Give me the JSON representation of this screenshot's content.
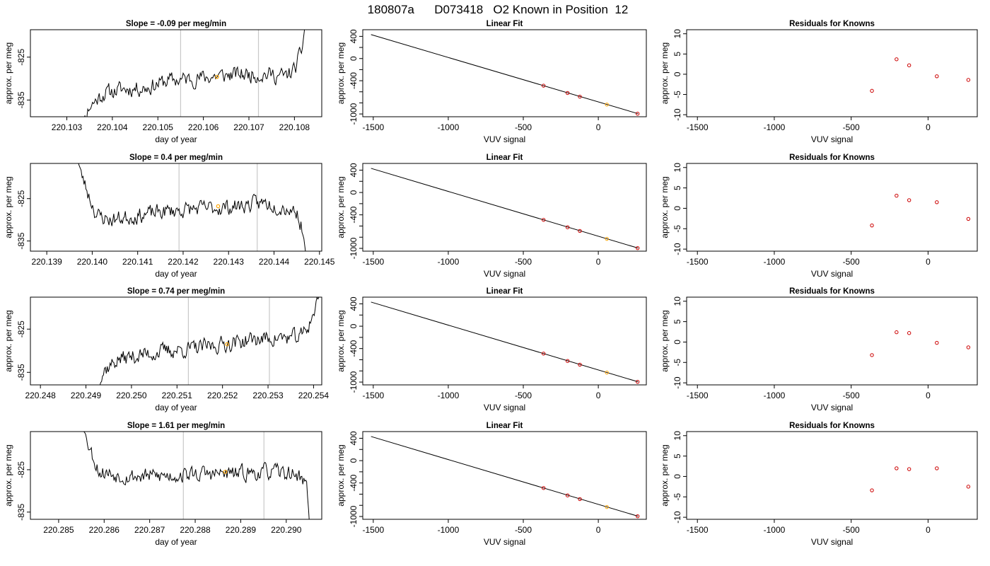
{
  "figure": {
    "title_run": "180807a",
    "title_id": "D073418",
    "title_desc": "O2 Known in Position",
    "title_pos": "12"
  },
  "colors": {
    "trace": "#000000",
    "box": "#000000",
    "event_line": "#c8c8c8",
    "highlight": "#ffa500",
    "residual": "#cc0000",
    "known_point": "#cc0000"
  },
  "chart_data": [
    {
      "type": "line",
      "panel": "timeseries",
      "row": 1,
      "title": "Slope =  -0.09  per meg/min",
      "xlabel": "day of year",
      "ylabel": "approx. per meg",
      "xlim": [
        220.1022,
        220.1086
      ],
      "ylim": [
        -838.9,
        -818.6
      ],
      "xticks": [
        "220.103",
        "220.104",
        "220.105",
        "220.106",
        "220.107",
        "220.108"
      ],
      "yticks": [
        "-825",
        "-835"
      ],
      "vlines": [
        220.1055,
        220.10721
      ],
      "highlight": {
        "x": 220.1063,
        "y": -829.6
      },
      "trace_range": [
        220.10325,
        220.10828
      ],
      "trace_anchors": [
        [
          220.10325,
          -842
        ],
        [
          220.1035,
          -836.5
        ],
        [
          220.1038,
          -833.5
        ],
        [
          220.1042,
          -832.5
        ],
        [
          220.1048,
          -832
        ],
        [
          220.1052,
          -830.5
        ],
        [
          220.1058,
          -830
        ],
        [
          220.1062,
          -829.5
        ],
        [
          220.1068,
          -829
        ],
        [
          220.1074,
          -829
        ],
        [
          220.1078,
          -829.5
        ],
        [
          220.108,
          -828
        ],
        [
          220.10815,
          -824
        ],
        [
          220.10828,
          -814
        ]
      ],
      "trace_noise": 1.6,
      "seed": 11
    },
    {
      "type": "line",
      "panel": "timeseries",
      "row": 2,
      "title": "Slope =  0.4  per meg/min",
      "xlabel": "day of year",
      "ylabel": "approx. per meg",
      "xlim": [
        220.13864,
        220.14505
      ],
      "ylim": [
        -837.4,
        -816.7
      ],
      "xticks": [
        "220.139",
        "220.140",
        "220.141",
        "220.142",
        "220.143",
        "220.144",
        "220.145"
      ],
      "yticks": [
        "-825",
        "-835"
      ],
      "vlines": [
        220.14191,
        220.14363
      ],
      "highlight": {
        "x": 220.14277,
        "y": -826.8
      },
      "trace_range": [
        220.13965,
        220.14472
      ],
      "trace_anchors": [
        [
          220.13965,
          -815
        ],
        [
          220.13985,
          -822
        ],
        [
          220.1401,
          -829
        ],
        [
          220.1404,
          -830
        ],
        [
          220.141,
          -829
        ],
        [
          220.1416,
          -828
        ],
        [
          220.1422,
          -827.5
        ],
        [
          220.143,
          -827
        ],
        [
          220.1438,
          -826
        ],
        [
          220.1442,
          -827
        ],
        [
          220.1445,
          -828
        ],
        [
          220.14462,
          -832
        ],
        [
          220.14472,
          -839
        ]
      ],
      "trace_noise": 1.6,
      "seed": 23
    },
    {
      "type": "line",
      "panel": "timeseries",
      "row": 3,
      "title": "Slope =  0.74  per meg/min",
      "xlabel": "day of year",
      "ylabel": "approx. per meg",
      "xlim": [
        220.24778,
        220.25418
      ],
      "ylim": [
        -837.9,
        -817.6
      ],
      "xticks": [
        "220.248",
        "220.249",
        "220.250",
        "220.251",
        "220.252",
        "220.253",
        "220.254"
      ],
      "yticks": [
        "-825",
        "-835"
      ],
      "vlines": [
        220.25125,
        220.25303
      ],
      "highlight": {
        "x": 220.2521,
        "y": -828.5
      },
      "trace_range": [
        220.24922,
        220.25418
      ],
      "trace_anchors": [
        [
          220.24922,
          -840
        ],
        [
          220.2494,
          -834.5
        ],
        [
          220.2497,
          -832
        ],
        [
          220.2502,
          -831
        ],
        [
          220.2508,
          -830
        ],
        [
          220.2514,
          -829.5
        ],
        [
          220.252,
          -828.5
        ],
        [
          220.2526,
          -827.5
        ],
        [
          220.2532,
          -827
        ],
        [
          220.2537,
          -827
        ],
        [
          220.2539,
          -824
        ],
        [
          220.25418,
          -816
        ]
      ],
      "trace_noise": 1.6,
      "seed": 37
    },
    {
      "type": "line",
      "panel": "timeseries",
      "row": 4,
      "title": "Slope =  1.61  per meg/min",
      "xlabel": "day of year",
      "ylabel": "approx. per meg",
      "xlim": [
        220.28438,
        220.29078
      ],
      "ylim": [
        -836.7,
        -816.0
      ],
      "xticks": [
        "220.285",
        "220.286",
        "220.287",
        "220.288",
        "220.289",
        "220.290"
      ],
      "yticks": [
        "-825",
        "-835"
      ],
      "vlines": [
        220.28774,
        220.28951
      ],
      "highlight": {
        "x": 220.28866,
        "y": -825.5
      },
      "trace_range": [
        220.28551,
        220.29051
      ],
      "trace_anchors": [
        [
          220.28551,
          -814
        ],
        [
          220.28572,
          -821
        ],
        [
          220.2859,
          -825.5
        ],
        [
          220.2865,
          -826.5
        ],
        [
          220.2872,
          -826.5
        ],
        [
          220.288,
          -826
        ],
        [
          220.2888,
          -826
        ],
        [
          220.2896,
          -825.5
        ],
        [
          220.2902,
          -826
        ],
        [
          220.29045,
          -828
        ],
        [
          220.29051,
          -838
        ]
      ],
      "trace_noise": 1.6,
      "seed": 53
    },
    {
      "type": "scatter",
      "panel": "fit",
      "row": 1,
      "title": "Linear Fit",
      "xlabel": "VUV signal",
      "ylabel": "approx. per meg",
      "xlim": [
        -1570,
        320
      ],
      "ylim": [
        -1050,
        520
      ],
      "xticks": [
        "-1500",
        "-1000",
        "-500",
        "0"
      ],
      "yticks": [
        "-1000",
        "-800",
        "-600",
        "-400",
        "-200",
        "0",
        "200",
        "400"
      ],
      "ytick_labels_shown": [
        "-1000",
        "-400",
        "0",
        "400"
      ],
      "fit_line": [
        [
          -1515,
          432
        ],
        [
          265,
          -995
        ]
      ],
      "points": [
        [
          -365,
          -490
        ],
        [
          -205,
          -622
        ],
        [
          -123,
          -688
        ],
        [
          57,
          -830
        ],
        [
          262,
          -995
        ]
      ],
      "highlight_index": 3
    },
    {
      "type": "scatter",
      "panel": "fit",
      "row": 2,
      "title": "Linear Fit",
      "xlabel": "VUV signal",
      "ylabel": "approx. per meg",
      "xlim": [
        -1570,
        320
      ],
      "ylim": [
        -1050,
        520
      ],
      "xticks": [
        "-1500",
        "-1000",
        "-500",
        "0"
      ],
      "yticks": [
        "-1000",
        "-800",
        "-600",
        "-400",
        "-200",
        "0",
        "200",
        "400"
      ],
      "ytick_labels_shown": [
        "-1000",
        "-400",
        "0",
        "400"
      ],
      "fit_line": [
        [
          -1515,
          432
        ],
        [
          265,
          -995
        ]
      ],
      "points": [
        [
          -365,
          -490
        ],
        [
          -205,
          -622
        ],
        [
          -123,
          -688
        ],
        [
          57,
          -830
        ],
        [
          262,
          -995
        ]
      ],
      "highlight_index": 3
    },
    {
      "type": "scatter",
      "panel": "fit",
      "row": 3,
      "title": "Linear Fit",
      "xlabel": "VUV signal",
      "ylabel": "approx. per meg",
      "xlim": [
        -1570,
        320
      ],
      "ylim": [
        -1050,
        520
      ],
      "xticks": [
        "-1500",
        "-1000",
        "-500",
        "0"
      ],
      "yticks": [
        "-1000",
        "-800",
        "-600",
        "-400",
        "-200",
        "0",
        "200",
        "400"
      ],
      "ytick_labels_shown": [
        "-1000",
        "-400",
        "0",
        "400"
      ],
      "fit_line": [
        [
          -1515,
          432
        ],
        [
          265,
          -995
        ]
      ],
      "points": [
        [
          -365,
          -490
        ],
        [
          -205,
          -622
        ],
        [
          -123,
          -688
        ],
        [
          57,
          -830
        ],
        [
          262,
          -995
        ]
      ],
      "highlight_index": 3
    },
    {
      "type": "scatter",
      "panel": "fit",
      "row": 4,
      "title": "Linear Fit",
      "xlabel": "VUV signal",
      "ylabel": "approx. per meg",
      "xlim": [
        -1570,
        320
      ],
      "ylim": [
        -1050,
        520
      ],
      "xticks": [
        "-1500",
        "-1000",
        "-500",
        "0"
      ],
      "yticks": [
        "-1000",
        "-800",
        "-600",
        "-400",
        "-200",
        "0",
        "200",
        "400"
      ],
      "ytick_labels_shown": [
        "-1000",
        "-400",
        "0",
        "400"
      ],
      "fit_line": [
        [
          -1515,
          432
        ],
        [
          265,
          -995
        ]
      ],
      "points": [
        [
          -365,
          -490
        ],
        [
          -205,
          -622
        ],
        [
          -123,
          -688
        ],
        [
          57,
          -830
        ],
        [
          262,
          -995
        ]
      ],
      "highlight_index": 3
    },
    {
      "type": "scatter",
      "panel": "residuals",
      "row": 1,
      "title": "Residuals for Knowns",
      "xlabel": "VUV signal",
      "ylabel": "approx. per meg",
      "xlim": [
        -1570,
        320
      ],
      "ylim": [
        -10.5,
        11.0
      ],
      "xticks": [
        "-1500",
        "-1000",
        "-500",
        "0"
      ],
      "yticks": [
        "-10",
        "-5",
        "0",
        "5",
        "10"
      ],
      "points": [
        [
          -365,
          -4.1
        ],
        [
          -205,
          3.7
        ],
        [
          -123,
          2.2
        ],
        [
          57,
          -0.5
        ],
        [
          262,
          -1.4
        ]
      ]
    },
    {
      "type": "scatter",
      "panel": "residuals",
      "row": 2,
      "title": "Residuals for Knowns",
      "xlabel": "VUV signal",
      "ylabel": "approx. per meg",
      "xlim": [
        -1570,
        320
      ],
      "ylim": [
        -10.5,
        11.0
      ],
      "xticks": [
        "-1500",
        "-1000",
        "-500",
        "0"
      ],
      "yticks": [
        "-10",
        "-5",
        "0",
        "5",
        "10"
      ],
      "points": [
        [
          -365,
          -4.2
        ],
        [
          -205,
          3.1
        ],
        [
          -123,
          2.0
        ],
        [
          57,
          1.5
        ],
        [
          262,
          -2.6
        ]
      ]
    },
    {
      "type": "scatter",
      "panel": "residuals",
      "row": 3,
      "title": "Residuals for Knowns",
      "xlabel": "VUV signal",
      "ylabel": "approx. per meg",
      "xlim": [
        -1570,
        320
      ],
      "ylim": [
        -10.5,
        11.0
      ],
      "xticks": [
        "-1500",
        "-1000",
        "-500",
        "0"
      ],
      "yticks": [
        "-10",
        "-5",
        "0",
        "5",
        "10"
      ],
      "points": [
        [
          -365,
          -3.2
        ],
        [
          -205,
          2.4
        ],
        [
          -123,
          2.2
        ],
        [
          57,
          -0.2
        ],
        [
          262,
          -1.3
        ]
      ]
    },
    {
      "type": "scatter",
      "panel": "residuals",
      "row": 4,
      "title": "Residuals for Knowns",
      "xlabel": "VUV signal",
      "ylabel": "approx. per meg",
      "xlim": [
        -1570,
        320
      ],
      "ylim": [
        -10.5,
        11.0
      ],
      "xticks": [
        "-1500",
        "-1000",
        "-500",
        "0"
      ],
      "yticks": [
        "-10",
        "-5",
        "0",
        "5",
        "10"
      ],
      "points": [
        [
          -365,
          -3.4
        ],
        [
          -205,
          2.0
        ],
        [
          -123,
          1.8
        ],
        [
          57,
          2.0
        ],
        [
          262,
          -2.5
        ]
      ]
    }
  ]
}
